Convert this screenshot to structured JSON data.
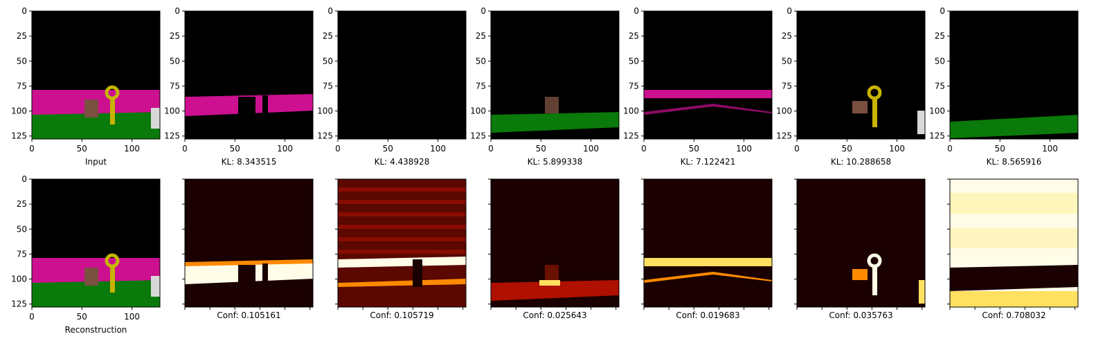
{
  "figure": {
    "top_row": [
      {
        "caption": "Input",
        "scene": "input"
      },
      {
        "caption": "KL: 8.343515",
        "scene": "pink_band"
      },
      {
        "caption": "KL: 4.438928",
        "scene": "dark"
      },
      {
        "caption": "KL: 5.899338",
        "scene": "green_band"
      },
      {
        "caption": "KL: 7.122421",
        "scene": "pink_wedge"
      },
      {
        "caption": "KL: 10.288658",
        "scene": "key"
      },
      {
        "caption": "KL: 8.565916",
        "scene": "green_floor"
      }
    ],
    "bottom_row": [
      {
        "caption": "Reconstruction",
        "scene": "input"
      },
      {
        "caption": "Conf: 0.105161",
        "scene": "heat_band"
      },
      {
        "caption": "Conf: 0.105719",
        "scene": "heat_noisy"
      },
      {
        "caption": "Conf: 0.025643",
        "scene": "heat_low"
      },
      {
        "caption": "Conf: 0.019683",
        "scene": "heat_wedge"
      },
      {
        "caption": "Conf: 0.035763",
        "scene": "heat_key"
      },
      {
        "caption": "Conf: 0.708032",
        "scene": "heat_bright"
      }
    ],
    "y_ticks": [
      "0",
      "25",
      "50",
      "75",
      "100",
      "125"
    ],
    "x_ticks": [
      "0",
      "50",
      "100"
    ],
    "colors": {
      "black": "#000000",
      "magenta": "#cc1090",
      "green": "#0a7a0a",
      "key_gold": "#c8b400",
      "box_brown": "#7a5040",
      "heat_dark": "#1a0000",
      "heat_red": "#b01000",
      "heat_orange": "#ff8a00",
      "heat_yellow": "#ffe060",
      "heat_white": "#fffde8"
    }
  }
}
